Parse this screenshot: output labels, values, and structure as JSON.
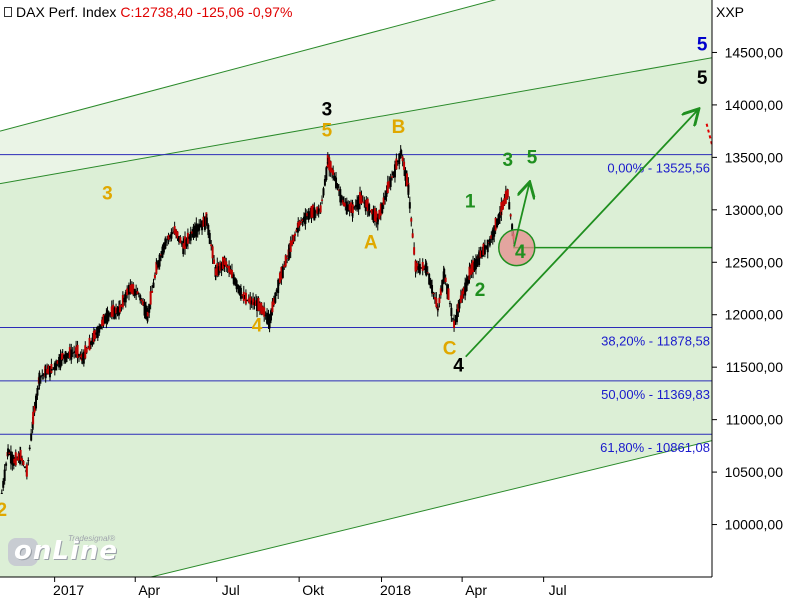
{
  "header": {
    "title": "DAX Perf. Index",
    "quote": "C:12738,40 -125,06 -0,97%",
    "exchange": "XXP"
  },
  "logo": {
    "brand": "onLine",
    "small": "Tradesignal®"
  },
  "chart_data": {
    "type": "candlestick",
    "y_axis": {
      "range": [
        9500,
        15000
      ],
      "ticks": [
        "10000,00",
        "10500,00",
        "11000,00",
        "11500,00",
        "12000,00",
        "12500,00",
        "13000,00",
        "13500,00",
        "14000,00",
        "14500,00"
      ],
      "tick_values": [
        10000,
        10500,
        11000,
        11500,
        12000,
        12500,
        13000,
        13500,
        14000,
        14500
      ]
    },
    "x_axis": {
      "range": [
        "2016-11-01",
        "2019-01-05"
      ],
      "labels": [
        {
          "date": "2017-01-01",
          "text": "2017"
        },
        {
          "date": "2017-04-01",
          "text": "Apr"
        },
        {
          "date": "2017-07-01",
          "text": "Jul"
        },
        {
          "date": "2017-10-01",
          "text": "Okt"
        },
        {
          "date": "2018-01-01",
          "text": "2018"
        },
        {
          "date": "2018-04-01",
          "text": "Apr"
        },
        {
          "date": "2018-07-01",
          "text": "Jul"
        }
      ]
    },
    "close_path": [
      [
        "2016-11-03",
        10300
      ],
      [
        "2016-11-10",
        10700
      ],
      [
        "2016-11-17",
        10600
      ],
      [
        "2016-11-24",
        10650
      ],
      [
        "2016-12-01",
        10500
      ],
      [
        "2016-12-08",
        11000
      ],
      [
        "2016-12-15",
        11400
      ],
      [
        "2016-12-22",
        11450
      ],
      [
        "2016-12-29",
        11480
      ],
      [
        "2017-01-10",
        11600
      ],
      [
        "2017-01-25",
        11650
      ],
      [
        "2017-02-01",
        11580
      ],
      [
        "2017-02-15",
        11800
      ],
      [
        "2017-03-01",
        12000
      ],
      [
        "2017-03-15",
        12050
      ],
      [
        "2017-03-25",
        12250
      ],
      [
        "2017-04-05",
        12200
      ],
      [
        "2017-04-15",
        12000
      ],
      [
        "2017-04-25",
        12450
      ],
      [
        "2017-05-05",
        12700
      ],
      [
        "2017-05-15",
        12800
      ],
      [
        "2017-05-25",
        12650
      ],
      [
        "2017-06-05",
        12800
      ],
      [
        "2017-06-20",
        12900
      ],
      [
        "2017-06-30",
        12400
      ],
      [
        "2017-07-10",
        12500
      ],
      [
        "2017-07-20",
        12350
      ],
      [
        "2017-08-01",
        12150
      ],
      [
        "2017-08-15",
        12100
      ],
      [
        "2017-08-29",
        11950
      ],
      [
        "2017-09-08",
        12300
      ],
      [
        "2017-09-20",
        12600
      ],
      [
        "2017-09-30",
        12850
      ],
      [
        "2017-10-10",
        12950
      ],
      [
        "2017-10-25",
        13000
      ],
      [
        "2017-11-02",
        13450
      ],
      [
        "2017-11-08",
        13350
      ],
      [
        "2017-11-20",
        13050
      ],
      [
        "2017-11-30",
        13000
      ],
      [
        "2017-12-08",
        13100
      ],
      [
        "2017-12-15",
        13050
      ],
      [
        "2017-12-28",
        12900
      ],
      [
        "2018-01-08",
        13200
      ],
      [
        "2018-01-23",
        13550
      ],
      [
        "2018-01-31",
        13200
      ],
      [
        "2018-02-08",
        12450
      ],
      [
        "2018-02-20",
        12450
      ],
      [
        "2018-03-05",
        12050
      ],
      [
        "2018-03-12",
        12400
      ],
      [
        "2018-03-23",
        11900
      ],
      [
        "2018-03-29",
        12100
      ],
      [
        "2018-04-10",
        12400
      ],
      [
        "2018-04-20",
        12550
      ],
      [
        "2018-05-02",
        12700
      ],
      [
        "2018-05-15",
        13000
      ],
      [
        "2018-05-22",
        13150
      ],
      [
        "2018-05-29",
        12700
      ]
    ],
    "channel_lines": [
      {
        "from": [
          "2016-11-01",
          13250
        ],
        "to": [
          "2019-01-05",
          14450
        ]
      },
      {
        "from": [
          "2016-11-01",
          13750
        ],
        "to": [
          "2019-01-05",
          15550
        ]
      },
      {
        "from": [
          "2016-11-01",
          9150
        ],
        "to": [
          "2019-01-05",
          10800
        ]
      }
    ],
    "fib_levels": [
      {
        "value": 13525.56,
        "label": "0,00% - 13525,56"
      },
      {
        "value": 11878.58,
        "label": "38,20% - 11878,58"
      },
      {
        "value": 11369.83,
        "label": "50,00% - 11369,83"
      },
      {
        "value": 10861.08,
        "label": "61,80% - 10861,08"
      }
    ],
    "support_line": {
      "value": 12640,
      "from": "2018-05-28"
    },
    "forecast_arrows": [
      {
        "from": [
          "2018-04-05",
          11600
        ],
        "to": [
          "2018-12-20",
          13950
        ]
      },
      {
        "from": [
          "2018-05-29",
          12650
        ],
        "to": [
          "2018-06-15",
          13250
        ]
      }
    ],
    "red_dashed": {
      "from": [
        "2018-12-30",
        13820
      ],
      "to": [
        "2019-01-05",
        13620
      ]
    },
    "highlight_circle": {
      "center": [
        "2018-06-01",
        12640
      ]
    },
    "wave_labels": [
      {
        "text": "2",
        "at": [
          "2016-11-03",
          10080
        ],
        "color": "#e0a800"
      },
      {
        "text": "3",
        "at": [
          "2017-03-01",
          13100
        ],
        "color": "#e0a800"
      },
      {
        "text": "4",
        "at": [
          "2017-08-15",
          11840
        ],
        "color": "#e0a800"
      },
      {
        "text": "3",
        "at": [
          "2017-11-01",
          13900
        ],
        "color": "#000000"
      },
      {
        "text": "5",
        "at": [
          "2017-11-01",
          13700
        ],
        "color": "#e0a800"
      },
      {
        "text": "A",
        "at": [
          "2017-12-20",
          12630
        ],
        "color": "#e0a800"
      },
      {
        "text": "B",
        "at": [
          "2018-01-20",
          13730
        ],
        "color": "#e0a800"
      },
      {
        "text": "C",
        "at": [
          "2018-03-18",
          11620
        ],
        "color": "#e0a800"
      },
      {
        "text": "4",
        "at": [
          "2018-03-28",
          11460
        ],
        "color": "#000000"
      },
      {
        "text": "1",
        "at": [
          "2018-04-10",
          13020
        ],
        "color": "#1f8f1f"
      },
      {
        "text": "2",
        "at": [
          "2018-04-21",
          12180
        ],
        "color": "#1f8f1f"
      },
      {
        "text": "3",
        "at": [
          "2018-05-22",
          13420
        ],
        "color": "#1f8f1f"
      },
      {
        "text": "4",
        "at": [
          "2018-06-05",
          12540
        ],
        "color": "#1f8f1f"
      },
      {
        "text": "5",
        "at": [
          "2018-06-18",
          13440
        ],
        "color": "#1f8f1f"
      },
      {
        "text": "5",
        "at": [
          "2018-12-25",
          14520
        ],
        "color": "#0000cc"
      },
      {
        "text": "5",
        "at": [
          "2018-12-25",
          14200
        ],
        "color": "#000000"
      }
    ]
  }
}
